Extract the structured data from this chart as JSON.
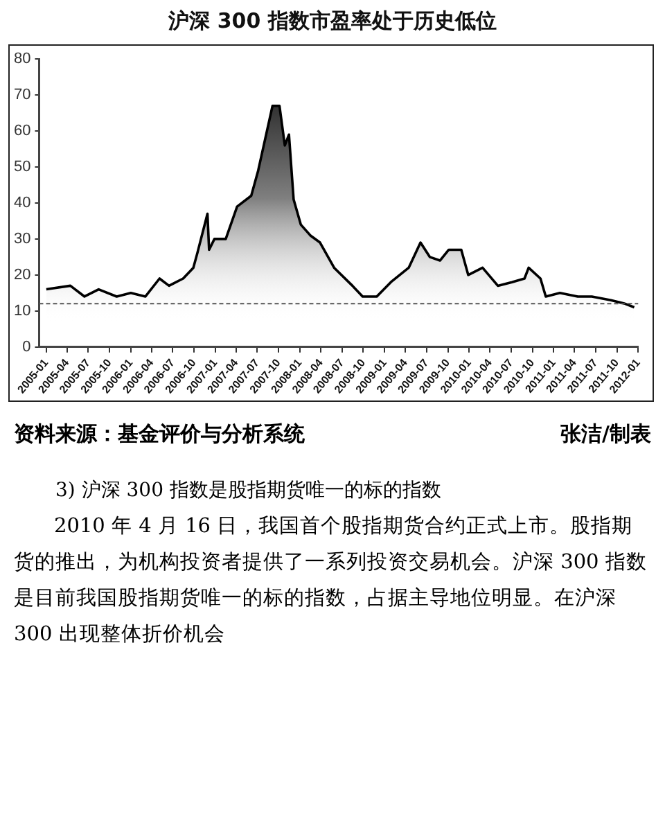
{
  "chart_data": {
    "type": "area",
    "title": "沪深 300 指数市盈率处于历史低位",
    "x": [
      "2005-01-01",
      "2005-04-15",
      "2005-06-15",
      "2005-08-15",
      "2005-11-01",
      "2006-01-01",
      "2006-03-05",
      "2006-05-05",
      "2006-06-15",
      "2006-08-15",
      "2006-09-28",
      "2006-10-15",
      "2006-11-28",
      "2006-12-05",
      "2006-12-28",
      "2007-02-15",
      "2007-04-05",
      "2007-06-05",
      "2007-07-05",
      "2007-08-05",
      "2007-09-05",
      "2007-10-05",
      "2007-10-28",
      "2007-11-15",
      "2007-12-05",
      "2008-01-05",
      "2008-02-15",
      "2008-03-28",
      "2008-05-28",
      "2008-08-15",
      "2008-09-28",
      "2008-11-28",
      "2009-01-28",
      "2009-04-15",
      "2009-06-05",
      "2009-07-15",
      "2009-08-28",
      "2009-10-05",
      "2009-11-28",
      "2009-12-28",
      "2010-02-28",
      "2010-05-05",
      "2010-07-05",
      "2010-08-28",
      "2010-09-15",
      "2010-11-05",
      "2010-11-28",
      "2011-01-28",
      "2011-04-15",
      "2011-06-15",
      "2011-09-05",
      "2011-11-05",
      "2011-12-15"
    ],
    "series": [
      {
        "color": "#000000",
        "values": [
          16,
          17,
          14,
          16,
          14,
          15,
          14,
          19,
          17,
          19,
          22,
          26,
          37,
          27,
          30,
          30,
          39,
          42,
          49,
          58,
          67,
          67,
          56,
          59,
          41,
          34,
          31,
          29,
          22,
          17,
          14,
          14,
          18,
          22,
          29,
          25,
          24,
          27,
          27,
          20,
          22,
          17,
          18,
          19,
          22,
          19,
          14,
          15,
          14,
          14,
          13,
          12,
          11
        ]
      }
    ],
    "ylim": [
      0,
      80
    ],
    "yticks": [
      0,
      10,
      20,
      30,
      40,
      50,
      60,
      70,
      80
    ],
    "xlim": [
      "2004-12",
      "2012-01"
    ],
    "xticks": [
      "2005-01",
      "2005-04",
      "2005-07",
      "2005-10",
      "2006-01",
      "2006-04",
      "2006-07",
      "2006-10",
      "2007-01",
      "2007-04",
      "2007-07",
      "2007-10",
      "2008-01",
      "2008-04",
      "2008-07",
      "2008-10",
      "2009-01",
      "2009-04",
      "2009-07",
      "2009-10",
      "2010-01",
      "2010-04",
      "2010-07",
      "2010-10",
      "2011-01",
      "2011-04",
      "2011-07",
      "2011-10",
      "2012-01"
    ],
    "ref_lines": [
      {
        "axis": "y",
        "value": 12,
        "line_style": "dashed",
        "color": "#555555"
      }
    ],
    "grid": false,
    "legend": false,
    "annotations": [
      "资料来源：基金评价与分析系统",
      "张洁/制表",
      "3) 沪深 300 指数是股指期货唯一的标的指数",
      "2010 年 4 月 16 日，我国首个股指期货合约正式上市。股指期货的推出，为机构投资者提供了一系列投资交易机会。沪深 300 指数是目前我国股指期货唯一的标的指数，占据主导地位明显。在沪深 300 出现整体折价机会"
    ]
  }
}
